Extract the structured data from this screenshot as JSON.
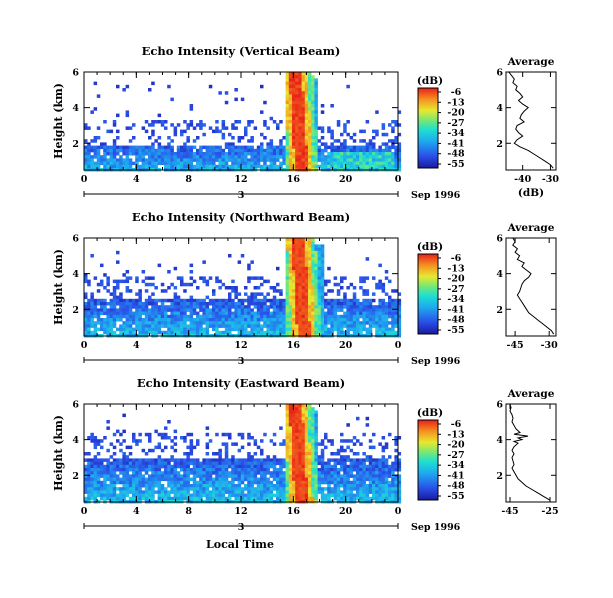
{
  "chart_data": [
    {
      "type": "heatmap",
      "title": "Echo Intensity (Vertical Beam)",
      "ylabel": "Height (km)",
      "xlabel": "",
      "x_ticks": [
        "0",
        "4",
        "8",
        "12",
        "16",
        "20",
        "0"
      ],
      "y_ticks": [
        "2",
        "4",
        "6"
      ],
      "xlim": [
        0,
        24
      ],
      "ylim": [
        0.5,
        6
      ],
      "date_tick": "3",
      "date_label": "Sep 1996",
      "colorbar": {
        "unit": "(dB)",
        "ticks": [
          "-6",
          "-13",
          "-20",
          "-27",
          "-34",
          "-41",
          "-48",
          "-55"
        ]
      },
      "echo_band_top_km": 2.0,
      "high_reflectivity_event_hours": [
        15.5,
        17.5
      ]
    },
    {
      "type": "heatmap",
      "title": "Echo Intensity (Northward Beam)",
      "ylabel": "Height (km)",
      "xlabel": "",
      "x_ticks": [
        "0",
        "4",
        "8",
        "12",
        "16",
        "20",
        "0"
      ],
      "y_ticks": [
        "2",
        "4",
        "6"
      ],
      "xlim": [
        0,
        24
      ],
      "ylim": [
        0.5,
        6
      ],
      "date_tick": "3",
      "date_label": "Sep 1996",
      "colorbar": {
        "unit": "(dB)",
        "ticks": [
          "-6",
          "-13",
          "-20",
          "-27",
          "-34",
          "-41",
          "-48",
          "-55"
        ]
      },
      "echo_band_top_km": 2.6,
      "high_reflectivity_event_hours": [
        15.6,
        17.8
      ]
    },
    {
      "type": "heatmap",
      "title": "Echo Intensity (Eastward Beam)",
      "ylabel": "Height (km)",
      "xlabel": "Local Time",
      "x_ticks": [
        "0",
        "4",
        "8",
        "12",
        "16",
        "20",
        "0"
      ],
      "y_ticks": [
        "2",
        "4",
        "6"
      ],
      "xlim": [
        0,
        24
      ],
      "ylim": [
        0.5,
        6
      ],
      "date_tick": "3",
      "date_label": "Sep 1996",
      "colorbar": {
        "unit": "(dB)",
        "ticks": [
          "-6",
          "-13",
          "-20",
          "-27",
          "-34",
          "-41",
          "-48",
          "-55"
        ]
      },
      "echo_band_top_km": 3.0,
      "high_reflectivity_event_hours": [
        15.5,
        17.5
      ]
    },
    {
      "type": "line",
      "title": "Average",
      "xlabel": "(dB)",
      "ylabel": "",
      "x_ticks": [
        "-40",
        "-30"
      ],
      "y_ticks": [
        "2",
        "4",
        "6"
      ],
      "xlim": [
        -46,
        -28
      ],
      "ylim": [
        0.5,
        6
      ],
      "profile": {
        "height_km": [
          6.0,
          5.8,
          5.6,
          5.4,
          5.2,
          5.0,
          4.8,
          4.6,
          4.4,
          4.2,
          4.0,
          3.8,
          3.6,
          3.4,
          3.2,
          3.0,
          2.8,
          2.6,
          2.4,
          2.2,
          2.0,
          1.8,
          1.6,
          1.4,
          1.2,
          1.0,
          0.8,
          0.6
        ],
        "db": [
          -45,
          -44,
          -43,
          -43.5,
          -42,
          -42.5,
          -41,
          -40,
          -41.5,
          -40,
          -38,
          -39.5,
          -40.5,
          -41,
          -39.5,
          -42,
          -42.5,
          -41.5,
          -40,
          -42,
          -43,
          -41,
          -38,
          -36,
          -34,
          -32,
          -30,
          -29
        ]
      }
    },
    {
      "type": "line",
      "title": "Average",
      "xlabel": "",
      "ylabel": "",
      "x_ticks": [
        "-45",
        "-30"
      ],
      "y_ticks": [
        "2",
        "4",
        "6"
      ],
      "xlim": [
        -49,
        -27
      ],
      "ylim": [
        0.5,
        6
      ],
      "profile": {
        "height_km": [
          6.0,
          5.8,
          5.6,
          5.4,
          5.2,
          5.0,
          4.8,
          4.6,
          4.4,
          4.2,
          4.0,
          3.8,
          3.6,
          3.4,
          3.2,
          3.0,
          2.8,
          2.6,
          2.4,
          2.2,
          2.0,
          1.8,
          1.6,
          1.4,
          1.2,
          1.0,
          0.8,
          0.6
        ],
        "db": [
          -46,
          -45,
          -46,
          -44,
          -45,
          -43,
          -44,
          -41,
          -42,
          -40,
          -38,
          -39,
          -41,
          -42,
          -42.5,
          -43,
          -44,
          -43,
          -42,
          -41,
          -40,
          -39,
          -37,
          -35,
          -33,
          -31,
          -29,
          -28
        ]
      }
    },
    {
      "type": "line",
      "title": "Average",
      "xlabel": "",
      "ylabel": "",
      "x_ticks": [
        "-45",
        "-25"
      ],
      "y_ticks": [
        "2",
        "4",
        "6"
      ],
      "xlim": [
        -47,
        -22
      ],
      "ylim": [
        0.5,
        6
      ],
      "profile": {
        "height_km": [
          6.0,
          5.8,
          5.6,
          5.4,
          5.2,
          5.0,
          4.8,
          4.6,
          4.4,
          4.3,
          4.2,
          4.1,
          4.0,
          3.9,
          3.8,
          3.6,
          3.4,
          3.2,
          3.0,
          2.8,
          2.6,
          2.4,
          2.2,
          2.0,
          1.8,
          1.6,
          1.4,
          1.2,
          1.0,
          0.8,
          0.6
        ],
        "db": [
          -45,
          -44.5,
          -45,
          -44,
          -43.5,
          -44,
          -43,
          -42,
          -40,
          -43,
          -36,
          -41,
          -39,
          -43,
          -41,
          -43,
          -44,
          -43,
          -44,
          -43.5,
          -43,
          -44,
          -43,
          -42,
          -41,
          -39,
          -37,
          -34,
          -31,
          -28,
          -25
        ]
      }
    }
  ]
}
